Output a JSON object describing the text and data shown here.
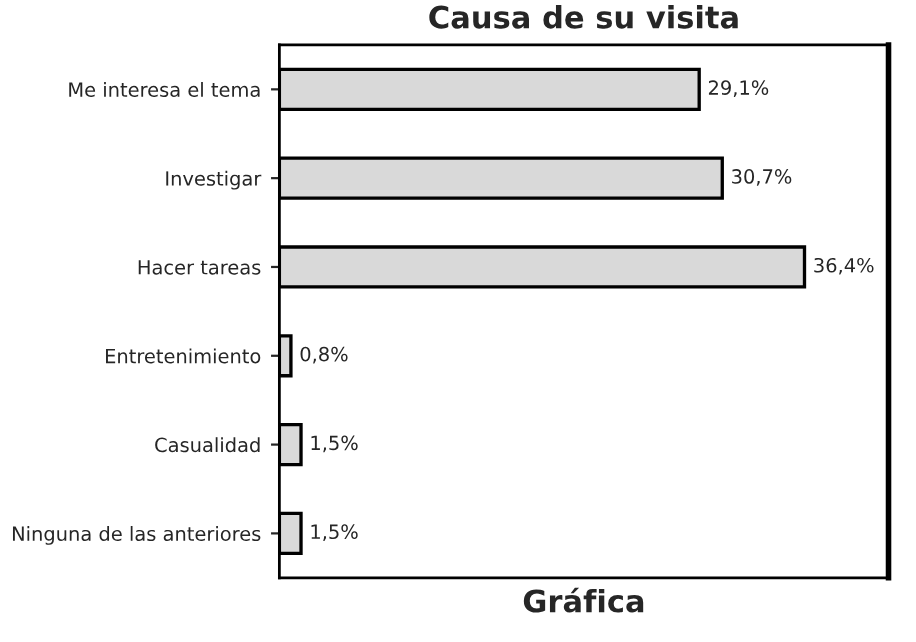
{
  "chart_data": {
    "type": "bar",
    "orientation": "horizontal",
    "title": "Causa de su visita",
    "xlabel": "Gráfica",
    "categories": [
      "Me interesa el tema",
      "Investigar",
      "Hacer tareas",
      "Entretenimiento",
      "Casualidad",
      "Ninguna de las anteriores"
    ],
    "values": [
      29.1,
      30.7,
      36.4,
      0.8,
      1.5,
      1.5
    ],
    "value_labels": [
      "29,1%",
      "30,7%",
      "36,4%",
      "0,8%",
      "1,5%",
      "1,5%"
    ],
    "color": "#d9d9d9",
    "grid": false,
    "legend": false
  }
}
